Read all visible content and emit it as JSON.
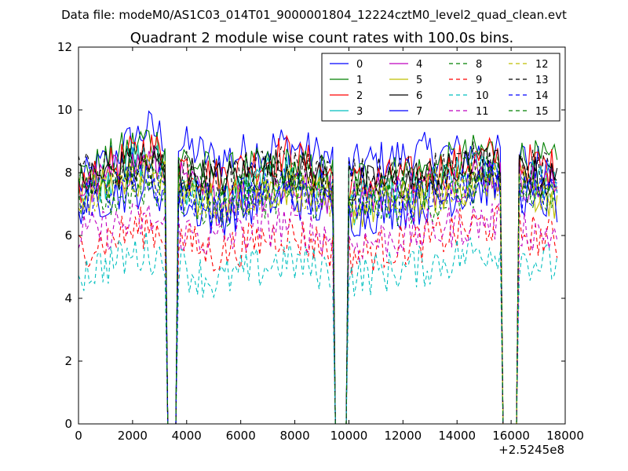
{
  "chart_data": {
    "type": "line",
    "suptitle": "Data file: modeM0/AS1C03_014T01_9000001804_12224cztM0_level2_quad_clean.evt",
    "title": "Quadrant 2 module wise count rates with 100.0s bins.",
    "xlabel": "",
    "ylabel": "",
    "x_offset_label": "+2.5245e8",
    "xlim": [
      0,
      18000
    ],
    "ylim": [
      0,
      12
    ],
    "x_ticks": [
      0,
      2000,
      4000,
      6000,
      8000,
      10000,
      12000,
      14000,
      16000,
      18000
    ],
    "x_tick_labels": [
      "0",
      "2000",
      "4000",
      "6000",
      "8000",
      "10000",
      "12000",
      "14000",
      "16000",
      "18000"
    ],
    "y_ticks": [
      0,
      2,
      4,
      6,
      8,
      10,
      12
    ],
    "y_tick_labels": [
      "0",
      "2",
      "4",
      "6",
      "8",
      "10",
      "12"
    ],
    "bin_width": 100,
    "gaps": [
      [
        3300,
        3600
      ],
      [
        9500,
        9900
      ],
      [
        15700,
        16200
      ]
    ],
    "grid": false,
    "legend": {
      "placement": "top-right",
      "columns": 4
    },
    "series": [
      {
        "name": "0",
        "color": "#0000ff",
        "dash": "solid",
        "levels": [
          7.6,
          9.4,
          8.4,
          8.9,
          8.2,
          8.6,
          8.6,
          8.2
        ]
      },
      {
        "name": "1",
        "color": "#008000",
        "dash": "solid",
        "levels": [
          7.8,
          9.1,
          7.9,
          8.2,
          7.8,
          8.0,
          8.7,
          8.2
        ]
      },
      {
        "name": "2",
        "color": "#ff0000",
        "dash": "solid",
        "levels": [
          7.5,
          8.8,
          7.8,
          8.6,
          7.6,
          7.9,
          8.5,
          8.1
        ]
      },
      {
        "name": "3",
        "color": "#00bfbf",
        "dash": "solid",
        "levels": [
          7.4,
          8.5,
          7.0,
          8.0,
          7.0,
          7.4,
          8.2,
          7.6
        ]
      },
      {
        "name": "4",
        "color": "#bf00bf",
        "dash": "solid",
        "levels": [
          7.4,
          8.4,
          7.0,
          7.6,
          7.2,
          7.5,
          8.0,
          7.5
        ]
      },
      {
        "name": "5",
        "color": "#bfbf00",
        "dash": "solid",
        "levels": [
          7.2,
          8.0,
          7.0,
          7.6,
          6.8,
          7.2,
          7.8,
          7.2
        ]
      },
      {
        "name": "6",
        "color": "#000000",
        "dash": "solid",
        "levels": [
          7.7,
          8.3,
          7.7,
          8.2,
          7.5,
          7.8,
          8.2,
          7.7
        ]
      },
      {
        "name": "7",
        "color": "#0000ff",
        "dash": "solid",
        "levels": [
          7.0,
          7.6,
          6.6,
          7.3,
          6.6,
          7.0,
          7.6,
          7.0
        ]
      },
      {
        "name": "8",
        "color": "#008000",
        "dash": "dashed",
        "levels": [
          6.8,
          7.6,
          6.8,
          7.4,
          6.9,
          7.0,
          7.6,
          7.0
        ]
      },
      {
        "name": "9",
        "color": "#ff0000",
        "dash": "dashed",
        "levels": [
          5.6,
          6.3,
          5.4,
          6.1,
          5.4,
          5.8,
          6.4,
          5.8
        ]
      },
      {
        "name": "10",
        "color": "#00bfbf",
        "dash": "dashed",
        "levels": [
          4.8,
          5.5,
          4.5,
          5.2,
          4.7,
          5.0,
          5.6,
          5.0
        ]
      },
      {
        "name": "11",
        "color": "#bf00bf",
        "dash": "dashed",
        "levels": [
          6.0,
          6.5,
          5.8,
          6.4,
          5.7,
          6.1,
          6.5,
          6.0
        ]
      },
      {
        "name": "12",
        "color": "#bfbf00",
        "dash": "dashed",
        "levels": [
          7.3,
          8.0,
          7.0,
          7.6,
          7.0,
          7.3,
          7.8,
          7.3
        ]
      },
      {
        "name": "13",
        "color": "#000000",
        "dash": "dashed",
        "levels": [
          7.9,
          8.3,
          7.8,
          8.2,
          7.8,
          8.0,
          8.4,
          7.9
        ]
      },
      {
        "name": "14",
        "color": "#0000ff",
        "dash": "dashed",
        "levels": [
          7.1,
          7.8,
          6.9,
          7.5,
          6.9,
          7.2,
          7.7,
          7.1
        ]
      },
      {
        "name": "15",
        "color": "#008000",
        "dash": "dashed",
        "levels": [
          7.4,
          8.1,
          7.3,
          7.8,
          7.2,
          7.5,
          8.0,
          7.4
        ]
      }
    ]
  }
}
